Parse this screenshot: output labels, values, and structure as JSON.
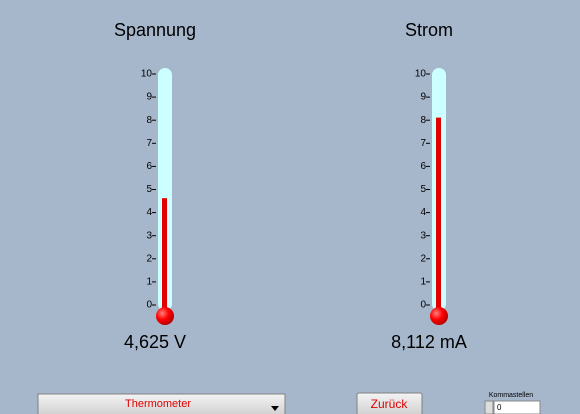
{
  "gauges": [
    {
      "title": "Spannung",
      "value": 4.625,
      "value_label": "4,625 V",
      "ylim": [
        0,
        10
      ],
      "yticks": [
        0,
        1,
        2,
        3,
        4,
        5,
        6,
        7,
        8,
        9,
        10
      ]
    },
    {
      "title": "Strom",
      "value": 8.112,
      "value_label": "8,112 mA",
      "ylim": [
        0,
        10
      ],
      "yticks": [
        0,
        1,
        2,
        3,
        4,
        5,
        6,
        7,
        8,
        9,
        10
      ]
    }
  ],
  "controls": {
    "dropdown": "Thermometer",
    "button": "Zurück",
    "precision_label": "Kommastellen",
    "precision_value": 0
  }
}
